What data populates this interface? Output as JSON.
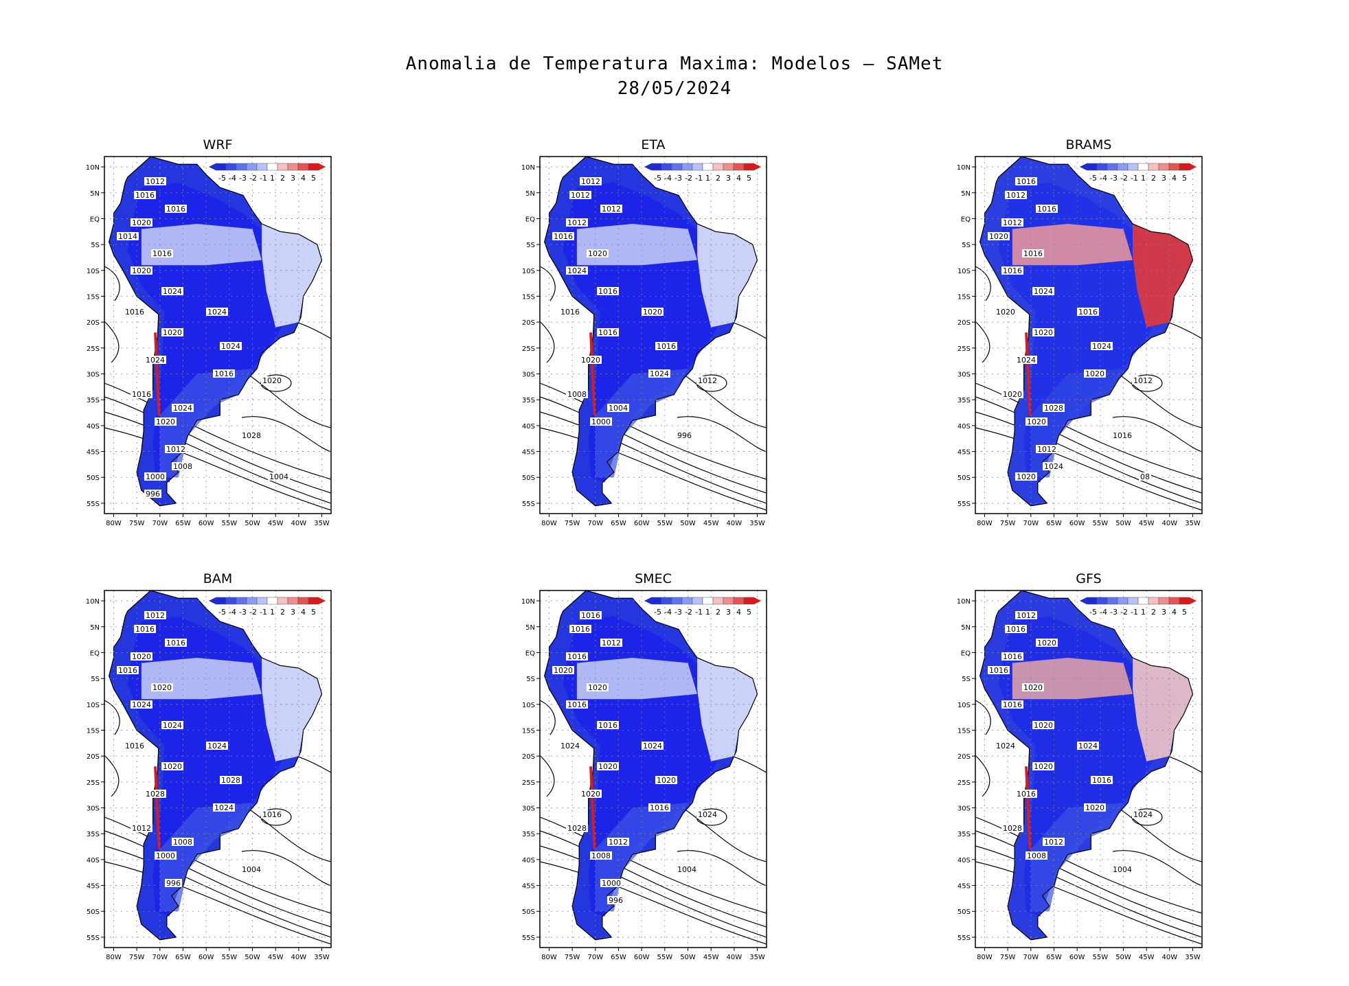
{
  "title": {
    "line1": "Anomalia de Temperatura Maxima: Modelos — SAMet",
    "line2": "28/05/2024"
  },
  "axes": {
    "lat_labels": [
      "10N",
      "5N",
      "EQ",
      "5S",
      "10S",
      "15S",
      "20S",
      "25S",
      "30S",
      "35S",
      "40S",
      "45S",
      "50S",
      "55S"
    ],
    "lon_labels": [
      "80W",
      "75W",
      "70W",
      "65W",
      "60W",
      "55W",
      "50W",
      "45W",
      "40W",
      "35W"
    ]
  },
  "colorbar": {
    "labels": [
      "-5",
      "-4",
      "-3",
      "-2",
      "-1",
      "1",
      "2",
      "3",
      "4",
      "5"
    ],
    "colors": [
      "#1b2bd8",
      "#3a4ee6",
      "#5f73ef",
      "#8a9bf3",
      "#b8c2f8",
      "#ffffff",
      "#f6c0c0",
      "#ef8c8c",
      "#e65353",
      "#d81b1b"
    ]
  },
  "panels": [
    {
      "name": "WRF",
      "scheme": "cold",
      "isobars": [
        "1012",
        "1016",
        "1016",
        "1020",
        "1014",
        "1016",
        "1020",
        "1024",
        "1016",
        "1020",
        "1024",
        "1024",
        "1024",
        "1016",
        "1020",
        "1016",
        "1024",
        "1020",
        "1028",
        "1012",
        "1008",
        "1000",
        "1004",
        "996"
      ]
    },
    {
      "name": "ETA",
      "scheme": "cold",
      "isobars": [
        "1012",
        "1012",
        "1012",
        "1012",
        "1016",
        "1020",
        "1024",
        "1016",
        "1016",
        "1016",
        "1020",
        "1016",
        "1020",
        "1024",
        "1012",
        "1008",
        "1004",
        "1000",
        "996"
      ]
    },
    {
      "name": "BRAMS",
      "scheme": "warm",
      "isobars": [
        "1016",
        "1012",
        "1016",
        "1012",
        "1020",
        "1016",
        "1016",
        "1024",
        "1020",
        "1020",
        "1016",
        "1024",
        "1024",
        "1020",
        "1012",
        "1020",
        "1028",
        "1020",
        "1016",
        "1012",
        "1024",
        "1020",
        "08"
      ]
    },
    {
      "name": "BAM",
      "scheme": "cold",
      "isobars": [
        "1012",
        "1016",
        "1016",
        "1020",
        "1016",
        "1020",
        "1024",
        "1024",
        "1016",
        "1020",
        "1024",
        "1028",
        "1028",
        "1024",
        "1016",
        "1012",
        "1008",
        "1000",
        "1004",
        "996"
      ]
    },
    {
      "name": "SMEC",
      "scheme": "cold",
      "isobars": [
        "1016",
        "1016",
        "1012",
        "1016",
        "1020",
        "1020",
        "1016",
        "1016",
        "1024",
        "1020",
        "1024",
        "1020",
        "1020",
        "1016",
        "1024",
        "1028",
        "1012",
        "1008",
        "1004",
        "1000",
        "996"
      ]
    },
    {
      "name": "GFS",
      "scheme": "mixed",
      "isobars": [
        "1012",
        "1016",
        "1020",
        "1016",
        "1016",
        "1020",
        "1016",
        "1020",
        "1024",
        "1020",
        "1024",
        "1016",
        "1016",
        "1020",
        "1024",
        "1028",
        "1012",
        "1008",
        "1004"
      ]
    }
  ]
}
